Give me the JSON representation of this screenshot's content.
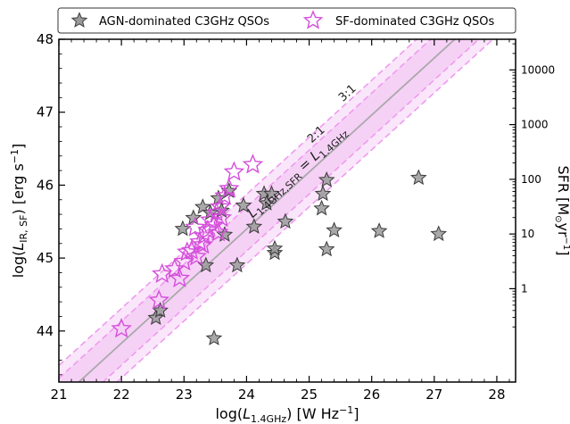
{
  "chart_data": {
    "type": "scatter",
    "xlim": [
      21,
      28.3
    ],
    "ylim": [
      43.3,
      48
    ],
    "xticks": [
      21,
      22,
      23,
      24,
      25,
      26,
      27,
      28
    ],
    "yticks": [
      44,
      45,
      46,
      47,
      48
    ],
    "xlabel": "log(L1.4GHz) [W Hz−1]",
    "ylabel": "log(LIR,SF) [erg s−1]",
    "right_axis": {
      "label": "SFR [M⊙yr−1]",
      "ticks": [
        {
          "value": 1,
          "label": "1"
        },
        {
          "value": 10,
          "label": "10"
        },
        {
          "value": 100,
          "label": "100"
        },
        {
          "value": 1000,
          "label": "1000"
        },
        {
          "value": 10000,
          "label": "10000"
        }
      ]
    },
    "legend": {
      "placement": "top",
      "entries": [
        {
          "name": "AGN-dominated C3GHz QSOs",
          "marker": "star-filled",
          "color": "#9a9a9a"
        },
        {
          "name": "SF-dominated C3GHz QSOs",
          "marker": "star-open",
          "color": "#d44fdb"
        }
      ]
    },
    "relation": {
      "label": "L1.4GHz,SFR = L1.4GHz",
      "line_color": "#a9a9a9",
      "band_color": "#f4c8f4",
      "dashed_color": "#ef9bef",
      "x_points": [
        21,
        28.3
      ],
      "y_points": [
        43.05,
        48.76
      ],
      "offsets_dex": [
        0.301,
        0.477
      ],
      "offset_labels": [
        "2:1",
        "3:1"
      ]
    },
    "series": [
      {
        "name": "AGN-dominated C3GHz QSOs",
        "points": [
          [
            22.55,
            44.18
          ],
          [
            22.62,
            44.28
          ],
          [
            23.35,
            44.9
          ],
          [
            23.48,
            43.9
          ],
          [
            23.85,
            44.9
          ],
          [
            24.45,
            45.07
          ],
          [
            24.45,
            45.13
          ],
          [
            24.12,
            45.43
          ],
          [
            24.62,
            45.5
          ],
          [
            25.28,
            45.12
          ],
          [
            25.4,
            45.38
          ],
          [
            26.12,
            45.37
          ],
          [
            27.07,
            45.33
          ],
          [
            23.65,
            45.32
          ],
          [
            22.98,
            45.4
          ],
          [
            23.15,
            45.55
          ],
          [
            23.3,
            45.7
          ],
          [
            23.42,
            45.62
          ],
          [
            23.6,
            45.65
          ],
          [
            23.95,
            45.72
          ],
          [
            24.28,
            45.88
          ],
          [
            24.4,
            45.88
          ],
          [
            24.32,
            45.75
          ],
          [
            25.2,
            45.68
          ],
          [
            25.22,
            45.88
          ],
          [
            25.28,
            46.07
          ],
          [
            26.75,
            46.1
          ],
          [
            23.55,
            45.82
          ],
          [
            23.72,
            45.92
          ]
        ]
      },
      {
        "name": "SF-dominated C3GHz QSOs",
        "points": [
          [
            22.0,
            44.03
          ],
          [
            22.6,
            44.42
          ],
          [
            22.65,
            44.78
          ],
          [
            22.85,
            44.85
          ],
          [
            22.93,
            44.72
          ],
          [
            23.0,
            44.95
          ],
          [
            23.05,
            45.08
          ],
          [
            23.12,
            45.1
          ],
          [
            23.2,
            45.02
          ],
          [
            23.25,
            45.22
          ],
          [
            23.32,
            45.3
          ],
          [
            23.38,
            45.38
          ],
          [
            23.42,
            45.52
          ],
          [
            23.48,
            45.45
          ],
          [
            23.52,
            45.62
          ],
          [
            23.58,
            45.7
          ],
          [
            23.6,
            45.55
          ],
          [
            23.65,
            45.85
          ],
          [
            23.72,
            45.95
          ],
          [
            23.8,
            46.18
          ],
          [
            24.1,
            46.28
          ],
          [
            23.18,
            45.42
          ],
          [
            23.3,
            45.18
          ],
          [
            23.55,
            45.35
          ]
        ]
      }
    ]
  }
}
